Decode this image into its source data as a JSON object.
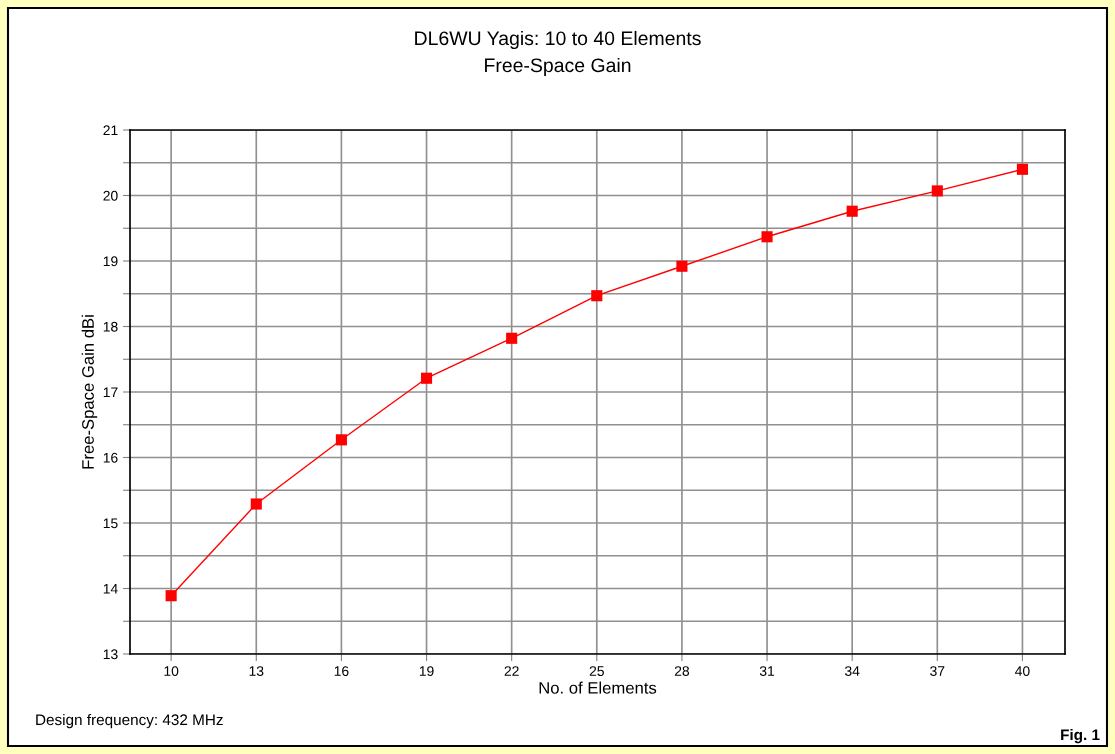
{
  "chart_data": {
    "type": "line",
    "title": "DL6WU Yagis: 10 to 40 Elements",
    "subtitle": "Free-Space Gain",
    "xlabel": "No. of Elements",
    "ylabel": "Free-Space Gain dBi",
    "x": [
      10,
      13,
      16,
      19,
      22,
      25,
      28,
      31,
      34,
      37,
      40
    ],
    "series": [
      {
        "color": "#ff0000",
        "values": [
          13.89,
          15.29,
          16.27,
          17.21,
          17.82,
          18.47,
          18.92,
          19.37,
          19.76,
          20.07,
          20.4
        ]
      }
    ],
    "xlim": [
      8.55,
      41.5
    ],
    "xticks": [
      10,
      13,
      16,
      19,
      22,
      25,
      28,
      31,
      34,
      37,
      40
    ],
    "ylim": [
      13,
      21
    ],
    "yticks": [
      13,
      {
        "value": 13.5,
        "label": null
      },
      14,
      {
        "value": 14.5,
        "label": null
      },
      15,
      {
        "value": 15.5,
        "label": null
      },
      16,
      {
        "value": 16.5,
        "label": null
      },
      17,
      {
        "value": 17.5,
        "label": null
      },
      18,
      {
        "value": 18.5,
        "label": null
      },
      19,
      {
        "value": 19.5,
        "label": null
      },
      20,
      {
        "value": 20.5,
        "label": null
      },
      21
    ],
    "grid": true,
    "marker": "square",
    "line_style": "solid",
    "annotations": [
      "Design frequency: 432 MHz",
      "Fig. 1"
    ]
  }
}
